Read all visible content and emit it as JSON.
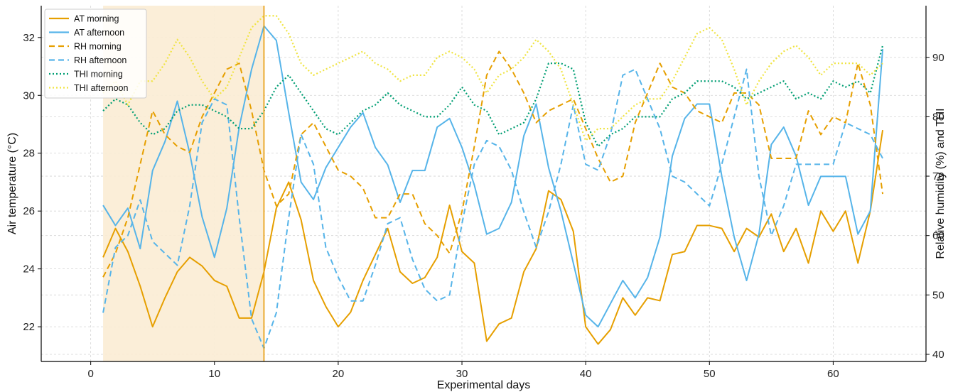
{
  "chart_data": {
    "type": "line",
    "xlabel": "Experimental days",
    "ylabel_left": "Air temperature (°C)",
    "ylabel_right": "Relative humidity (%) and THI",
    "xlim": [
      -4,
      67.5
    ],
    "ylim_left": [
      20.8,
      33.1
    ],
    "ylim_right": [
      38.8,
      98.7
    ],
    "xticks": [
      0,
      10,
      20,
      30,
      40,
      50,
      60
    ],
    "yticks_left": [
      22,
      24,
      26,
      28,
      30,
      32
    ],
    "yticks_right": [
      40,
      50,
      60,
      70,
      80,
      90
    ],
    "grid": true,
    "legend_position": "top-left",
    "shaded_span": {
      "x": [
        1,
        14
      ],
      "color": "#fbecd4"
    },
    "vline": {
      "x": 14,
      "color": "#e8a21c"
    },
    "series": [
      {
        "name": "AT morning",
        "axis": "left",
        "style": "solid",
        "color": "#e69f00",
        "x": [
          1,
          2,
          3,
          4,
          5,
          6,
          7,
          8,
          9,
          10,
          11,
          12,
          13,
          14,
          15,
          16,
          17,
          18,
          19,
          20,
          21,
          22,
          23,
          24,
          25,
          26,
          27,
          28,
          29,
          30,
          31,
          32,
          33,
          34,
          35,
          36,
          37,
          38,
          39,
          40,
          41,
          42,
          43,
          44,
          45,
          46,
          47,
          48,
          49,
          50,
          51,
          52,
          53,
          54,
          55,
          56,
          57,
          58,
          59,
          60,
          61,
          62,
          63,
          64
        ],
        "y": [
          24.4,
          25.4,
          24.6,
          23.4,
          22.0,
          23.0,
          23.9,
          24.4,
          24.1,
          23.6,
          23.4,
          22.3,
          22.3,
          23.9,
          26.1,
          27.0,
          25.7,
          23.6,
          22.7,
          22.0,
          22.5,
          23.6,
          24.5,
          25.4,
          23.9,
          23.5,
          23.7,
          24.4,
          26.2,
          24.6,
          24.2,
          21.5,
          22.1,
          22.3,
          23.9,
          24.7,
          26.7,
          26.4,
          25.3,
          22.0,
          21.4,
          21.9,
          23.0,
          22.4,
          23.0,
          22.9,
          24.5,
          24.6,
          25.5,
          25.5,
          25.4,
          24.6,
          25.4,
          25.1,
          25.9,
          24.6,
          25.4,
          24.2,
          26.0,
          25.3,
          26.0,
          24.2,
          26.0,
          28.8
        ]
      },
      {
        "name": "AT afternoon",
        "axis": "left",
        "style": "solid",
        "color": "#56b4e9",
        "x": [
          1,
          2,
          3,
          4,
          5,
          6,
          7,
          8,
          9,
          10,
          11,
          12,
          13,
          14,
          15,
          16,
          17,
          18,
          19,
          20,
          21,
          22,
          23,
          24,
          25,
          26,
          27,
          28,
          29,
          30,
          31,
          32,
          33,
          34,
          35,
          36,
          37,
          38,
          39,
          40,
          41,
          42,
          43,
          44,
          45,
          46,
          47,
          48,
          49,
          50,
          51,
          52,
          53,
          54,
          55,
          56,
          57,
          58,
          59,
          60,
          61,
          62,
          63,
          64
        ],
        "y": [
          26.2,
          25.5,
          26.1,
          24.7,
          27.4,
          28.4,
          29.8,
          28.0,
          25.8,
          24.4,
          26.1,
          28.9,
          30.9,
          32.4,
          31.9,
          29.4,
          27.0,
          26.4,
          27.5,
          28.2,
          28.9,
          29.4,
          28.2,
          27.6,
          26.3,
          27.4,
          27.4,
          28.9,
          29.2,
          28.2,
          26.9,
          25.2,
          25.4,
          26.3,
          28.6,
          29.7,
          27.5,
          26.0,
          24.2,
          22.4,
          22.0,
          22.8,
          23.6,
          23.0,
          23.7,
          25.1,
          27.9,
          29.2,
          29.7,
          29.7,
          27.2,
          25.1,
          23.6,
          25.2,
          28.3,
          28.9,
          27.9,
          26.2,
          27.2,
          27.2,
          27.2,
          25.2,
          26.0,
          31.6
        ]
      },
      {
        "name": "RH morning",
        "axis": "right",
        "style": "dashed",
        "color": "#e69f00",
        "x": [
          1,
          2,
          3,
          4,
          5,
          6,
          7,
          8,
          9,
          10,
          11,
          12,
          13,
          14,
          15,
          16,
          17,
          18,
          19,
          20,
          21,
          22,
          23,
          24,
          25,
          26,
          27,
          28,
          29,
          30,
          31,
          32,
          33,
          34,
          35,
          36,
          37,
          38,
          39,
          40,
          41,
          42,
          43,
          44,
          45,
          46,
          47,
          48,
          49,
          50,
          51,
          52,
          53,
          54,
          55,
          56,
          57,
          58,
          59,
          60,
          61,
          62,
          63,
          64
        ],
        "y": [
          53,
          57,
          63,
          72,
          81,
          77,
          75,
          74,
          80,
          84,
          88,
          89,
          81,
          71,
          65,
          67,
          77,
          79,
          75,
          71,
          70,
          68,
          63,
          63,
          67,
          67,
          62,
          60,
          57,
          64,
          75,
          87,
          91,
          88,
          84,
          79,
          81,
          82,
          83,
          78,
          73,
          69,
          70,
          79,
          84,
          89,
          85,
          84,
          81,
          80,
          79,
          84,
          84,
          82,
          73,
          73,
          73,
          81,
          77,
          80,
          79,
          89,
          82,
          67
        ]
      },
      {
        "name": "RH afternoon",
        "axis": "right",
        "style": "dashed",
        "color": "#56b4e9",
        "x": [
          1,
          2,
          3,
          4,
          5,
          6,
          7,
          8,
          9,
          10,
          11,
          12,
          13,
          14,
          15,
          16,
          17,
          18,
          19,
          20,
          21,
          22,
          23,
          24,
          25,
          26,
          27,
          28,
          29,
          30,
          31,
          32,
          33,
          34,
          35,
          36,
          37,
          38,
          39,
          40,
          41,
          42,
          43,
          44,
          45,
          46,
          47,
          48,
          49,
          50,
          51,
          52,
          53,
          54,
          55,
          56,
          57,
          58,
          59,
          60,
          61,
          62,
          63,
          64
        ],
        "y": [
          47,
          58,
          60,
          66,
          59,
          57,
          55,
          65,
          79,
          83,
          82,
          63,
          46,
          41,
          47,
          63,
          77,
          72,
          58,
          53,
          49,
          49,
          55,
          62,
          63,
          56,
          51,
          49,
          50,
          62,
          72,
          76,
          75,
          71,
          64,
          58,
          64,
          72,
          82,
          72,
          71,
          77,
          87,
          88,
          83,
          78,
          70,
          69,
          67,
          65,
          72,
          80,
          88,
          70,
          60,
          65,
          72,
          72,
          72,
          72,
          79,
          78,
          77,
          73
        ]
      },
      {
        "name": "THI morning",
        "axis": "right",
        "style": "dotted",
        "color": "#009e73",
        "x": [
          1,
          2,
          3,
          4,
          5,
          6,
          7,
          8,
          9,
          10,
          11,
          12,
          13,
          14,
          15,
          16,
          17,
          18,
          19,
          20,
          21,
          22,
          23,
          24,
          25,
          26,
          27,
          28,
          29,
          30,
          31,
          32,
          33,
          34,
          35,
          36,
          37,
          38,
          39,
          40,
          41,
          42,
          43,
          44,
          45,
          46,
          47,
          48,
          49,
          50,
          51,
          52,
          53,
          54,
          55,
          56,
          57,
          58,
          59,
          60,
          61,
          62,
          63,
          64
        ],
        "y": [
          81,
          83,
          82,
          79,
          77,
          78,
          81,
          82,
          82,
          81,
          80,
          78,
          78,
          81,
          85,
          87,
          84,
          81,
          78,
          77,
          79,
          81,
          82,
          84,
          82,
          81,
          80,
          80,
          82,
          85,
          82,
          81,
          77,
          78,
          79,
          83,
          89,
          89,
          88,
          79,
          75,
          77,
          78,
          80,
          80,
          80,
          83,
          84,
          86,
          86,
          86,
          85,
          83,
          84,
          85,
          86,
          83,
          84,
          83,
          86,
          85,
          86,
          84,
          92
        ]
      },
      {
        "name": "THI afternoon",
        "axis": "right",
        "style": "dotted",
        "color": "#f0e442",
        "x": [
          1,
          2,
          3,
          4,
          5,
          6,
          7,
          8,
          9,
          10,
          11,
          12,
          13,
          14,
          15,
          16,
          17,
          18,
          19,
          20,
          21,
          22,
          23,
          24,
          25,
          26,
          27,
          28,
          29,
          30,
          31,
          32,
          33,
          34,
          35,
          36,
          37,
          38,
          39,
          40,
          41,
          42,
          43,
          44,
          45,
          46,
          47,
          48,
          49,
          50,
          51,
          52,
          53,
          54,
          55,
          56,
          57,
          58,
          59,
          60,
          61,
          62,
          63,
          64
        ],
        "y": [
          84,
          86,
          82,
          86,
          86,
          89,
          93,
          90,
          86,
          83,
          85,
          90,
          95,
          97,
          97,
          94,
          89,
          87,
          88,
          89,
          90,
          91,
          89,
          88,
          86,
          87,
          87,
          90,
          91,
          90,
          88,
          84,
          87,
          88,
          90,
          93,
          91,
          88,
          82,
          76,
          78,
          78,
          80,
          82,
          83,
          83,
          86,
          90,
          94,
          95,
          93,
          88,
          82,
          86,
          89,
          91,
          92,
          90,
          87,
          89,
          89,
          89,
          87,
          89
        ]
      }
    ]
  }
}
